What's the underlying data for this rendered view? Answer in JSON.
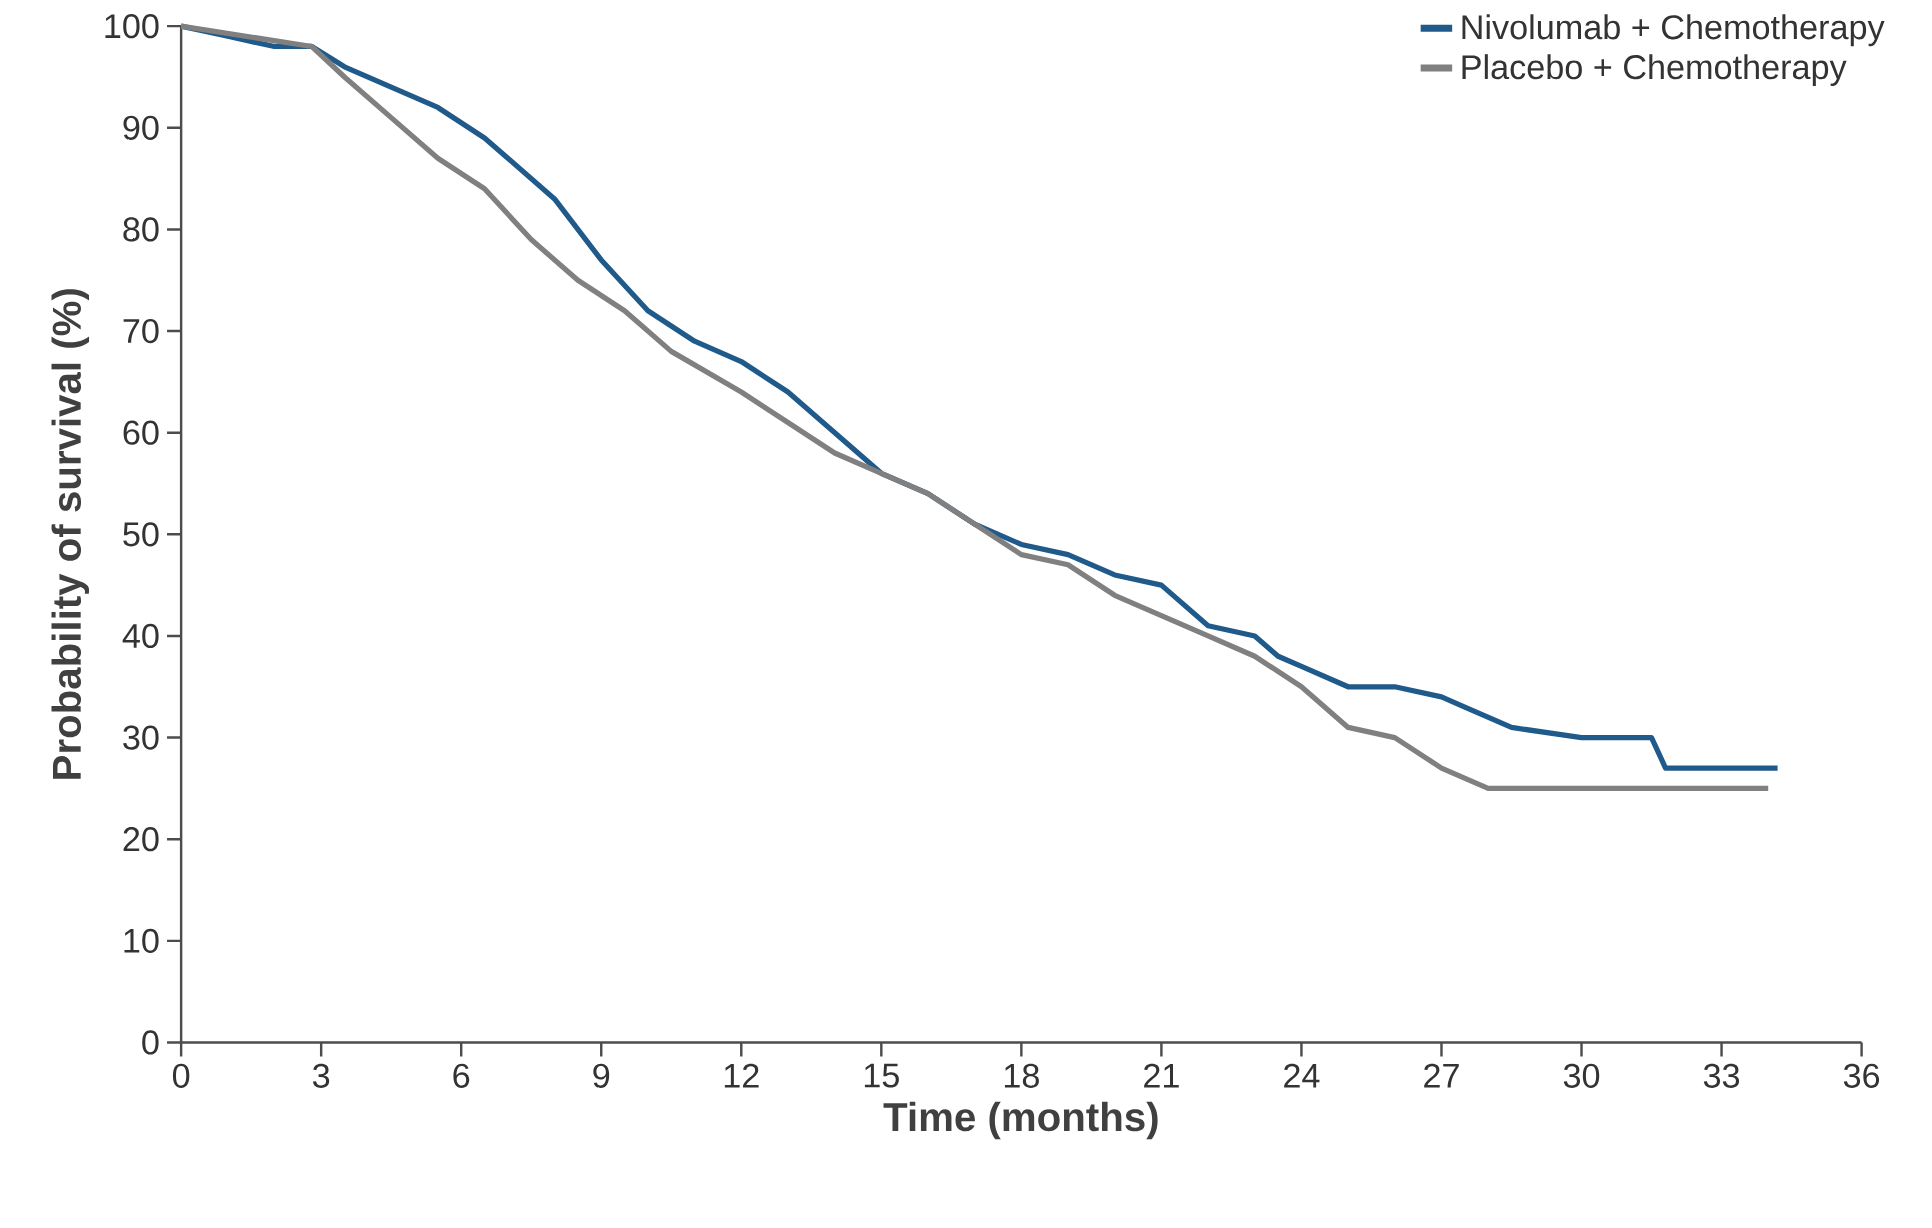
{
  "chart_data": {
    "type": "line",
    "xlabel": "Time (months)",
    "ylabel": "Probability of survival (%)",
    "xlim": [
      0,
      36
    ],
    "ylim": [
      0,
      100
    ],
    "xticks": [
      0,
      3,
      6,
      9,
      12,
      15,
      18,
      21,
      24,
      27,
      30,
      33,
      36
    ],
    "yticks": [
      0,
      10,
      20,
      30,
      40,
      50,
      60,
      70,
      80,
      90,
      100
    ],
    "grid": false,
    "legend": "top right",
    "marker": "none",
    "line_style": "solid",
    "series": [
      {
        "name": "Nivolumab + Chemotherapy",
        "color": "#1f5a8a",
        "x": [
          0,
          1,
          2,
          2.8,
          3.5,
          4.5,
          5.5,
          6.5,
          7,
          8,
          8.5,
          9,
          10,
          11,
          12,
          13,
          14,
          15,
          16,
          17,
          18,
          19,
          20,
          21,
          22,
          23,
          23.5,
          24,
          25,
          26,
          27,
          27.5,
          28.5,
          30,
          31.5,
          31.8,
          34.2
        ],
        "values": [
          100,
          99,
          98,
          98,
          96,
          94,
          92,
          89,
          87,
          83,
          80,
          77,
          72,
          69,
          67,
          64,
          60,
          56,
          54,
          51,
          49,
          48,
          46,
          45,
          41,
          40,
          38,
          37,
          35,
          35,
          34,
          33,
          31,
          30,
          30,
          27,
          27
        ]
      },
      {
        "name": "Placebo + Chemotherapy",
        "color": "#808080",
        "x": [
          0,
          2.8,
          3.5,
          4.5,
          5.5,
          6.5,
          7.5,
          8.5,
          9.5,
          10.5,
          12,
          13,
          14,
          15,
          16,
          17,
          18,
          19,
          20,
          21,
          22,
          23,
          24,
          25,
          26,
          27,
          28,
          34
        ],
        "values": [
          100,
          98,
          95,
          91,
          87,
          84,
          79,
          75,
          72,
          68,
          64,
          61,
          58,
          56,
          54,
          51,
          48,
          47,
          44,
          42,
          40,
          38,
          35,
          31,
          30,
          27,
          25,
          25
        ]
      }
    ]
  }
}
